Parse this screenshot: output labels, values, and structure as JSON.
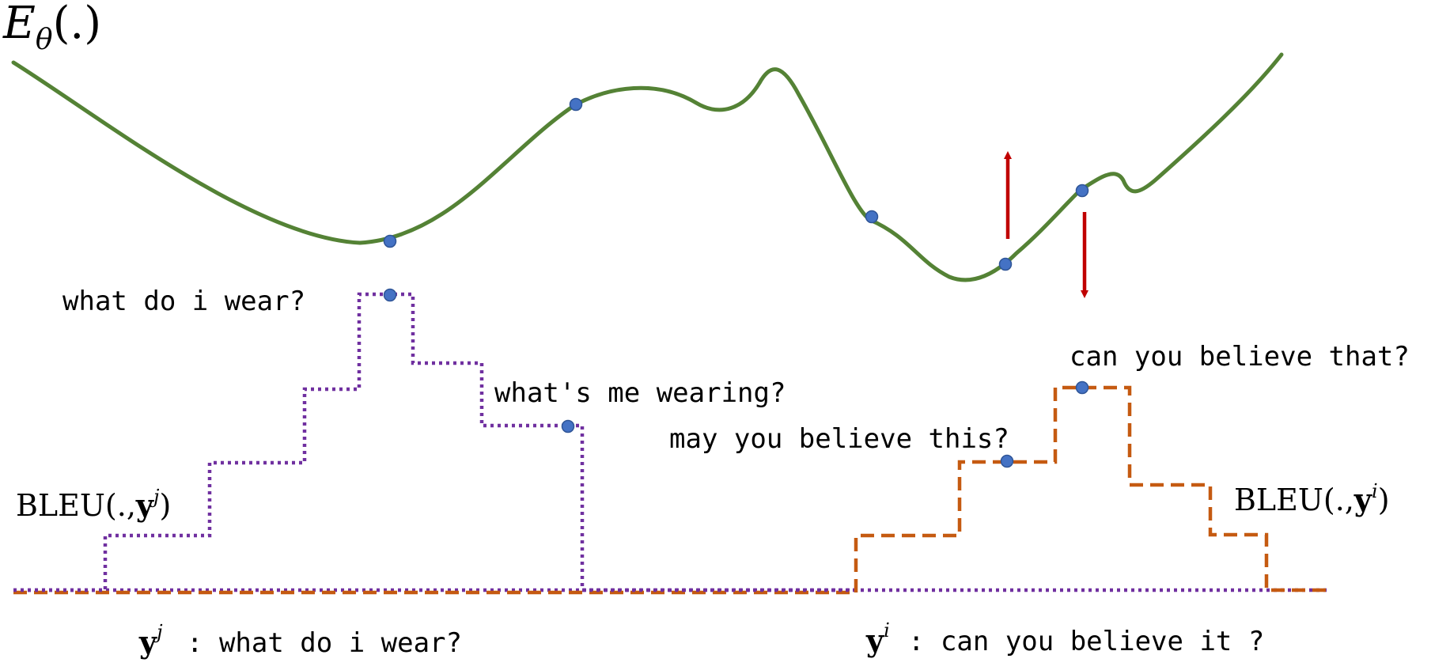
{
  "energy_label": {
    "symbol": "E",
    "subscript": "θ",
    "argument": "(.)"
  },
  "colors": {
    "energy_curve": "#548235",
    "point": "#4472C4",
    "point_edge": "#2F5597",
    "arrow": "#C00000",
    "bleu_j": "#7030A0",
    "bleu_i": "#C55A11"
  },
  "sentences": {
    "j_peak": "what do i wear?",
    "j_side": "what's me wearing?",
    "i_side": "may you believe this?",
    "i_peak": "can you believe that?"
  },
  "bleu_labels": {
    "j": {
      "prefix": "BLEU(.,",
      "var": "y",
      "sup": "j",
      "suffix": ")"
    },
    "i": {
      "prefix": "BLEU(.,",
      "var": "y",
      "sup": "i",
      "suffix": ")"
    }
  },
  "references": {
    "j": {
      "var": "y",
      "sup": "j",
      "sentence": ": what do i wear?"
    },
    "i": {
      "var": "y",
      "sup": "i",
      "sentence": ": can you believe it ?"
    }
  }
}
